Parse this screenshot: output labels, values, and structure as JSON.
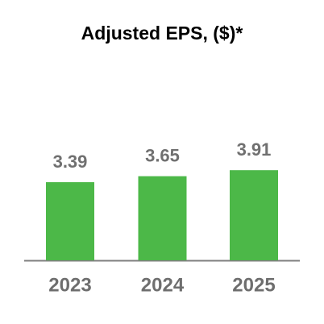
{
  "chart_data": {
    "type": "bar",
    "title": "Adjusted EPS, ($)*",
    "categories": [
      "2023",
      "2024",
      "2025"
    ],
    "values": [
      3.39,
      3.65,
      3.91
    ],
    "color": "#4cb848"
  }
}
